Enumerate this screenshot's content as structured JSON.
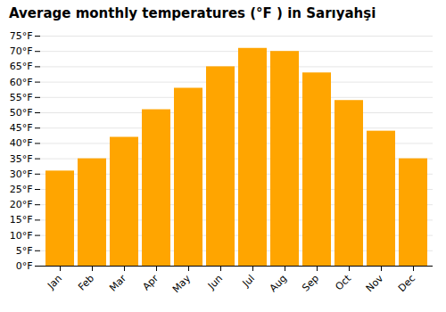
{
  "chart_data": {
    "type": "bar",
    "title": "Average monthly temperatures (°F ) in Sarıyahşi",
    "categories": [
      "Jan",
      "Feb",
      "Mar",
      "Apr",
      "May",
      "Jun",
      "Jul",
      "Aug",
      "Sep",
      "Oct",
      "Nov",
      "Dec"
    ],
    "values": [
      31,
      35,
      42,
      51,
      58,
      65,
      71,
      70,
      63,
      54,
      44,
      35
    ],
    "color": "#FFA500",
    "ylim": [
      0,
      75
    ],
    "yticks": [
      {
        "value": 0,
        "label": "0°F"
      },
      {
        "value": 5,
        "label": "5°F"
      },
      {
        "value": 10,
        "label": "10°F"
      },
      {
        "value": 15,
        "label": "15°F"
      },
      {
        "value": 20,
        "label": "20°F"
      },
      {
        "value": 25,
        "label": "25°F"
      },
      {
        "value": 30,
        "label": "30°F"
      },
      {
        "value": 35,
        "label": "35°F"
      },
      {
        "value": 40,
        "label": "40°F"
      },
      {
        "value": 45,
        "label": "45°F"
      },
      {
        "value": 50,
        "label": "50°F"
      },
      {
        "value": 55,
        "label": "55°F"
      },
      {
        "value": 60,
        "label": "60°F"
      },
      {
        "value": 65,
        "label": "65°F"
      },
      {
        "value": 70,
        "label": "70°F"
      },
      {
        "value": 75,
        "label": "75°F"
      }
    ],
    "grid": true
  }
}
